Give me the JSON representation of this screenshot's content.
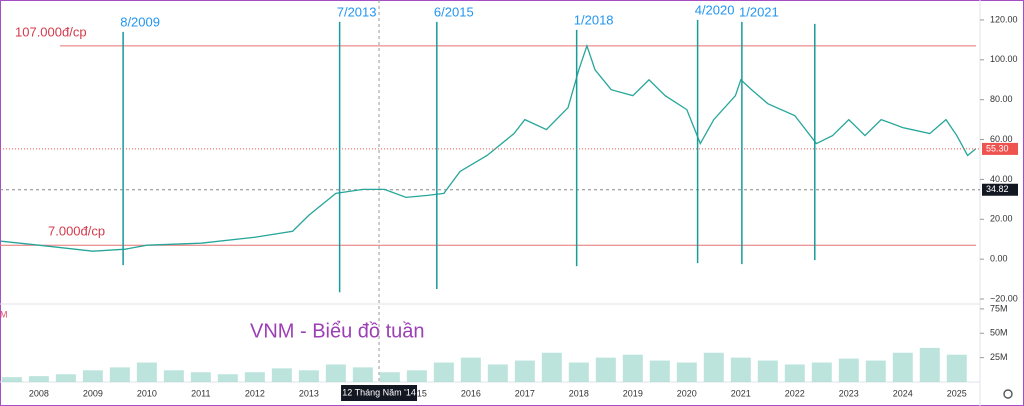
{
  "chart_data": [
    {
      "type": "line",
      "title": "VNM - Biểu đồ tuần",
      "color": "#26a69a",
      "x": [
        2007.3,
        2008,
        2009,
        2009.6,
        2010,
        2011,
        2012,
        2012.7,
        2013,
        2013.5,
        2014,
        2014.4,
        2014.8,
        2015.2,
        2015.5,
        2015.8,
        2016.3,
        2016.8,
        2017.0,
        2017.4,
        2017.8,
        2018.0,
        2018.15,
        2018.3,
        2018.6,
        2019.0,
        2019.3,
        2019.6,
        2020.0,
        2020.25,
        2020.5,
        2020.9,
        2021.0,
        2021.2,
        2021.5,
        2022.0,
        2022.4,
        2022.7,
        2023.0,
        2023.3,
        2023.6,
        2024.0,
        2024.5,
        2024.8,
        2025.0,
        2025.2,
        2025.35
      ],
      "values": [
        9,
        7,
        4,
        5,
        7,
        8,
        11,
        14,
        22,
        33,
        35,
        35,
        31,
        32,
        33,
        44,
        52,
        63,
        70,
        65,
        76,
        95,
        107,
        95,
        85,
        82,
        90,
        82,
        75,
        58,
        70,
        82,
        90,
        85,
        78,
        72,
        58,
        62,
        70,
        62,
        70,
        66,
        63,
        70,
        62,
        52,
        55.3
      ],
      "xlim": [
        2007.28,
        2025.43
      ],
      "xticks": [
        2008,
        2009,
        2010,
        2011,
        2012,
        2013,
        2015,
        2016,
        2017,
        2018,
        2019,
        2020,
        2021,
        2022,
        2023,
        2024,
        2025
      ],
      "ylim": [
        -22,
        130
      ],
      "yticks": [
        {
          "value": -20,
          "label": "−20.00"
        },
        {
          "value": 0,
          "label": "0.00"
        },
        {
          "value": 20,
          "label": "20.00"
        },
        {
          "value": 40,
          "label": "40.00"
        },
        {
          "value": 60,
          "label": "60.00"
        },
        {
          "value": 80,
          "label": "80.00"
        },
        {
          "value": 100,
          "label": "100.00"
        },
        {
          "value": 120,
          "label": "120.00"
        }
      ],
      "last_price": {
        "value": 55.3,
        "label": "55.30"
      },
      "crosshair": {
        "x": 2014.3,
        "x_label": "12 Tháng Năm '14",
        "y": 34.82
      },
      "levels": [
        {
          "value": 107,
          "label": "107.000đ/cp"
        },
        {
          "value": 7,
          "label": "7.000đ/cp"
        }
      ],
      "markers": [
        {
          "label": "8/2009",
          "x": 2009.56,
          "from": 114,
          "to": -3
        },
        {
          "label": "7/2013",
          "x": 2013.57,
          "from": 119,
          "to": -16.6
        },
        {
          "label": "6/2015",
          "x": 2015.37,
          "from": 119,
          "to": -15
        },
        {
          "label": "1/2018",
          "x": 2017.96,
          "from": 115,
          "to": -3.5
        },
        {
          "label": "4/2020",
          "x": 2020.2,
          "from": 120,
          "to": -2
        },
        {
          "label": "1/2021",
          "x": 2021.02,
          "from": 119,
          "to": -2.5
        },
        {
          "label": null,
          "x": 2022.37,
          "from": 118,
          "to": -0.5
        }
      ]
    },
    {
      "type": "bar",
      "unit_label": "M",
      "color": "#9fd8cf",
      "x": [
        2007.5,
        2008,
        2008.5,
        2009,
        2009.5,
        2010,
        2010.5,
        2011,
        2011.5,
        2012,
        2012.5,
        2013,
        2013.5,
        2014,
        2014.5,
        2015,
        2015.5,
        2016,
        2016.5,
        2017,
        2017.5,
        2018,
        2018.5,
        2019,
        2019.5,
        2020,
        2020.5,
        2021,
        2021.5,
        2022,
        2022.5,
        2023,
        2023.5,
        2024,
        2024.5,
        2025
      ],
      "values": [
        5,
        6,
        8,
        12,
        15,
        20,
        12,
        10,
        8,
        10,
        14,
        12,
        18,
        15,
        10,
        12,
        20,
        25,
        18,
        22,
        30,
        20,
        25,
        28,
        22,
        20,
        30,
        25,
        22,
        18,
        20,
        24,
        22,
        30,
        35,
        28
      ],
      "ylim": [
        0,
        79
      ],
      "yticks": [
        {
          "value": 25,
          "label": "25M"
        },
        {
          "value": 50,
          "label": "50M"
        },
        {
          "value": 75,
          "label": "75M"
        }
      ]
    }
  ]
}
